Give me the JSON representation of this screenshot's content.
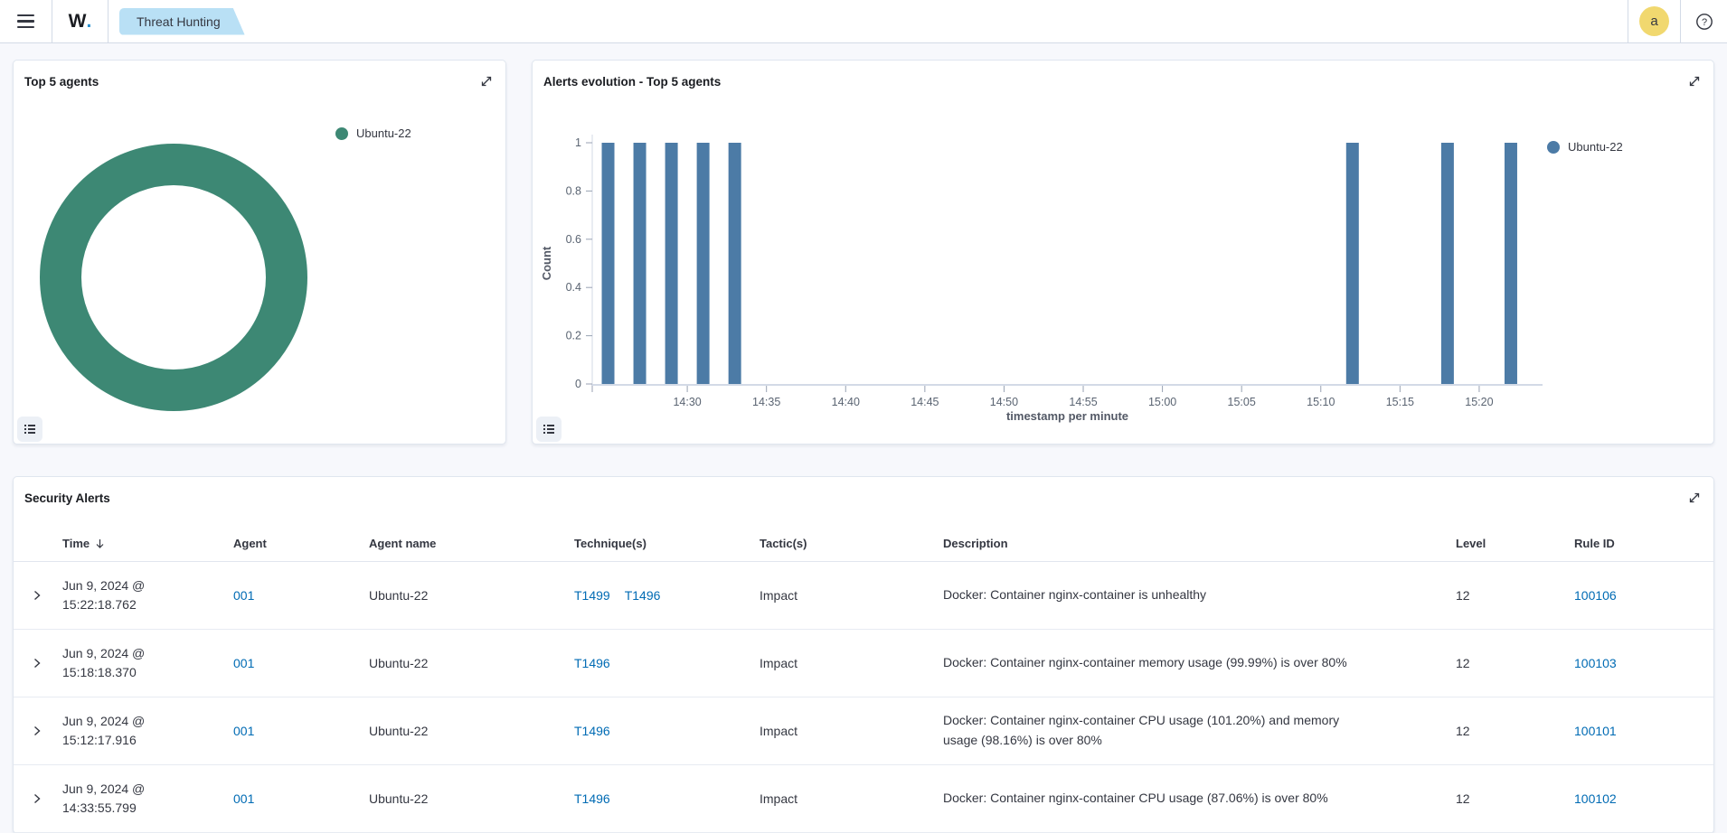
{
  "header": {
    "logo_w": "W",
    "logo_dot": ".",
    "tab_label": "Threat Hunting",
    "avatar_initial": "a"
  },
  "colors": {
    "donut_green": "#3D8874",
    "bar_blue": "#4C7BA6",
    "link_blue": "#006BB4",
    "tab_bg": "#B9E0F5",
    "avatar_bg": "#F1D86F"
  },
  "panels": {
    "top_agents": {
      "title": "Top 5 agents",
      "legend": [
        {
          "label": "Ubuntu-22",
          "color": "#3D8874"
        }
      ]
    },
    "alerts_evolution": {
      "title": "Alerts evolution - Top 5 agents",
      "legend": [
        {
          "label": "Ubuntu-22",
          "color": "#4C7BA6"
        }
      ]
    },
    "security_alerts": {
      "title": "Security Alerts",
      "sort_column": "Time",
      "sort_direction": "desc",
      "columns": [
        "Time",
        "Agent",
        "Agent name",
        "Technique(s)",
        "Tactic(s)",
        "Description",
        "Level",
        "Rule ID"
      ],
      "rows": [
        {
          "time": "Jun 9, 2024 @ 15:22:18.762",
          "agent": "001",
          "agent_name": "Ubuntu-22",
          "techniques": [
            "T1499",
            "T1496"
          ],
          "tactics": "Impact",
          "description": "Docker: Container nginx-container is unhealthy",
          "level": "12",
          "rule_id": "100106"
        },
        {
          "time": "Jun 9, 2024 @ 15:18:18.370",
          "agent": "001",
          "agent_name": "Ubuntu-22",
          "techniques": [
            "T1496"
          ],
          "tactics": "Impact",
          "description": "Docker: Container nginx-container memory usage (99.99%) is over 80%",
          "level": "12",
          "rule_id": "100103"
        },
        {
          "time": "Jun 9, 2024 @ 15:12:17.916",
          "agent": "001",
          "agent_name": "Ubuntu-22",
          "techniques": [
            "T1496"
          ],
          "tactics": "Impact",
          "description": "Docker: Container nginx-container CPU usage (101.20%) and memory usage (98.16%) is over 80%",
          "level": "12",
          "rule_id": "100101"
        },
        {
          "time": "Jun 9, 2024 @ 14:33:55.799",
          "agent": "001",
          "agent_name": "Ubuntu-22",
          "techniques": [
            "T1496"
          ],
          "tactics": "Impact",
          "description": "Docker: Container nginx-container CPU usage (87.06%) is over 80%",
          "level": "12",
          "rule_id": "100102"
        }
      ]
    }
  },
  "chart_data": [
    {
      "type": "pie",
      "donut": true,
      "title": "Top 5 agents",
      "labels": [
        "Ubuntu-22"
      ],
      "values": [
        100
      ],
      "colors": [
        "#3D8874"
      ],
      "legend_position": "right"
    },
    {
      "type": "bar",
      "title": "Alerts evolution - Top 5 agents",
      "xlabel": "timestamp per minute",
      "ylabel": "Count",
      "ylim": [
        0,
        1
      ],
      "yticks": [
        0,
        0.2,
        0.4,
        0.6,
        0.8,
        1
      ],
      "xtick_labels": [
        "14:30",
        "14:35",
        "14:40",
        "14:45",
        "14:50",
        "14:55",
        "15:00",
        "15:05",
        "15:10",
        "15:15",
        "15:20"
      ],
      "x_domain": [
        "14:24",
        "15:24"
      ],
      "grid": false,
      "legend_position": "top-right",
      "series": [
        {
          "name": "Ubuntu-22",
          "color": "#4C7BA6",
          "x": [
            "14:25",
            "14:27",
            "14:29",
            "14:31",
            "14:33",
            "15:12",
            "15:18",
            "15:22"
          ],
          "values": [
            1,
            1,
            1,
            1,
            1,
            1,
            1,
            1
          ]
        }
      ]
    }
  ]
}
